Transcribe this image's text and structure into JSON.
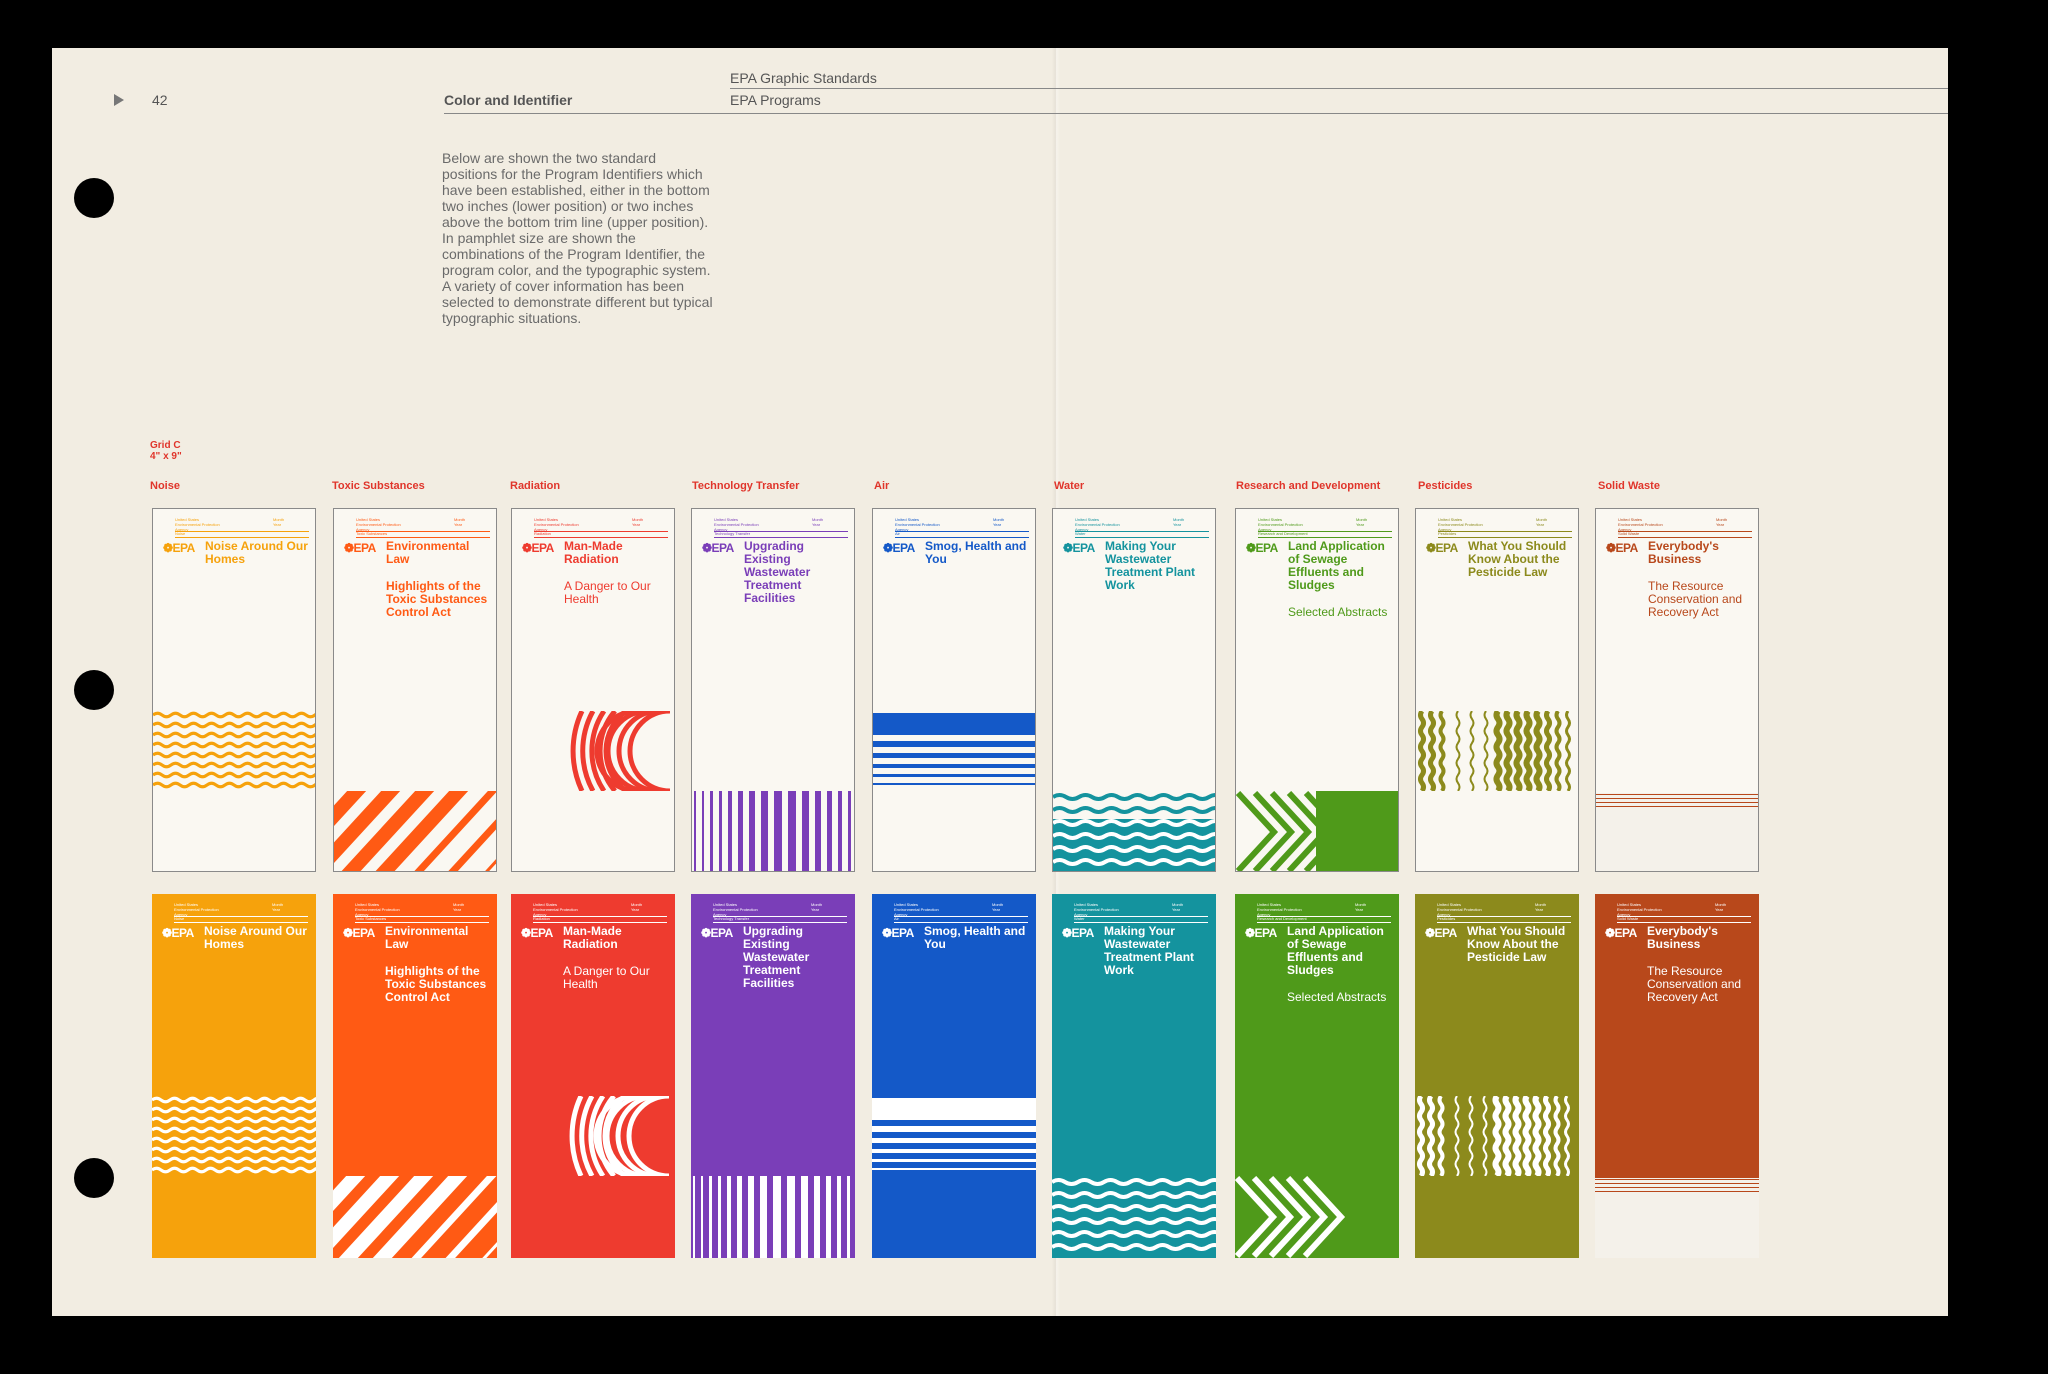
{
  "page": {
    "number": "42",
    "header_title": "EPA Graphic Standards",
    "section": "Color and Identifier",
    "subsection": "EPA Programs",
    "intro": "Below are shown the two standard positions for the Program Identifiers which have been established, either in the bottom two inches (lower position) or two inches above the bottom trim line (upper position). In pamphlet size are shown the combinations of the Program Identifier, the program color, and the typographic system. A variety of cover information has been selected to demonstrate different but typical typographic situations.",
    "grid_label": "Grid C",
    "grid_size": "4\" x 9\""
  },
  "cover_common": {
    "agency_lines": [
      "United States",
      "Environmental Protection",
      "Agency"
    ],
    "month_lines": [
      "Month",
      "Year"
    ],
    "logo": "❁EPA"
  },
  "programs": [
    {
      "label": "Noise",
      "color": "#f6a20c",
      "motif": "waves-h",
      "title": "Noise Around Our Homes",
      "subtitle": ""
    },
    {
      "label": "Toxic Substances",
      "color": "#ff5a14",
      "motif": "diagonals",
      "title": "Environmental Law",
      "subtitle": "Highlights of the Toxic Substances Control Act",
      "subtitle_bold": true
    },
    {
      "label": "Radiation",
      "color": "#ee3b2f",
      "motif": "arcs",
      "title": "Man-Made Radiation",
      "subtitle": "A Danger to Our Health"
    },
    {
      "label": "Technology Transfer",
      "color": "#7a3eb8",
      "motif": "vbars",
      "title": "Upgrading Existing Wastewater Treatment Facilities",
      "subtitle": ""
    },
    {
      "label": "Air",
      "color": "#1459c8",
      "motif": "hlines",
      "title": "Smog, Health and You",
      "subtitle": ""
    },
    {
      "label": "Water",
      "color": "#14939e",
      "motif": "waves-water",
      "title": "Making Your Wastewater Treatment Plant Work",
      "subtitle": ""
    },
    {
      "label": "Research and Development",
      "color": "#4f9a1a",
      "motif": "chevrons",
      "title": "Land Application of Sewage Effluents and Sludges",
      "subtitle": "Selected Abstracts"
    },
    {
      "label": "Pesticides",
      "color": "#8c8a1c",
      "motif": "waves-v",
      "title": "What You Should Know About the Pesticide Law",
      "subtitle": ""
    },
    {
      "label": "Solid Waste",
      "color": "#b8481b",
      "motif": "solid",
      "title": "Everybody's Business",
      "subtitle": "The Resource Conservation and Recovery Act"
    }
  ]
}
